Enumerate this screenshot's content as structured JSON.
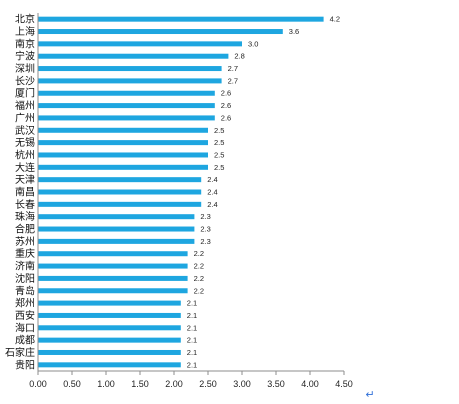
{
  "colors": {
    "bar": "#1ea6e0",
    "axis": "#8c8c8c",
    "text": "#111111",
    "return_mark": "#2f6fd8"
  },
  "return_mark_icon": "return-arrow-icon",
  "chart_data": {
    "type": "bar",
    "orientation": "horizontal",
    "categories": [
      "北京",
      "上海",
      "南京",
      "宁波",
      "深圳",
      "长沙",
      "厦门",
      "福州",
      "广州",
      "武汉",
      "无锡",
      "杭州",
      "大连",
      "天津",
      "南昌",
      "长春",
      "珠海",
      "合肥",
      "苏州",
      "重庆",
      "济南",
      "沈阳",
      "青岛",
      "郑州",
      "西安",
      "海口",
      "成都",
      "石家庄",
      "贵阳"
    ],
    "values": [
      4.2,
      3.6,
      3.0,
      2.8,
      2.7,
      2.7,
      2.6,
      2.6,
      2.6,
      2.5,
      2.5,
      2.5,
      2.5,
      2.4,
      2.4,
      2.4,
      2.3,
      2.3,
      2.3,
      2.2,
      2.2,
      2.2,
      2.2,
      2.1,
      2.1,
      2.1,
      2.1,
      2.1,
      2.1
    ],
    "value_labels": [
      "4.2",
      "3.6",
      "3.0",
      "2.8",
      "2.7",
      "2.7",
      "2.6",
      "2.6",
      "2.6",
      "2.5",
      "2.5",
      "2.5",
      "2.5",
      "2.4",
      "2.4",
      "2.4",
      "2.3",
      "2.3",
      "2.3",
      "2.2",
      "2.2",
      "2.2",
      "2.2",
      "2.1",
      "2.1",
      "2.1",
      "2.1",
      "2.1",
      "2.1"
    ],
    "xticks": [
      "0.00",
      "0.50",
      "1.00",
      "1.50",
      "2.00",
      "2.50",
      "3.00",
      "3.50",
      "4.00",
      "4.50"
    ],
    "xlim": [
      0,
      4.5
    ],
    "grid": false,
    "legend": false,
    "title": "",
    "xlabel": "",
    "ylabel": ""
  }
}
